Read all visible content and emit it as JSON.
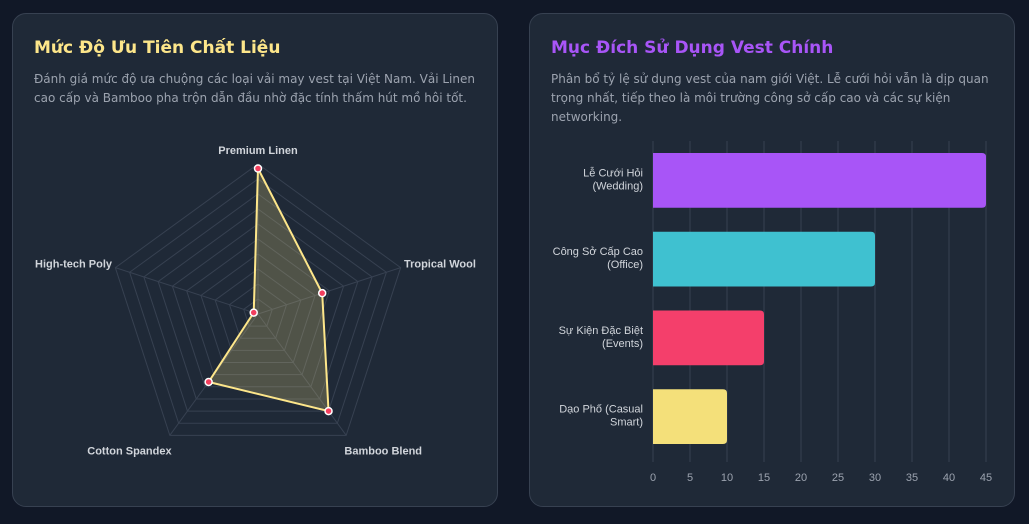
{
  "colors": {
    "background": "#111827",
    "card": "#1f2937",
    "grid": "#374151",
    "title_left": "#fde68a",
    "title_right": "#a855f7"
  },
  "left_card": {
    "title": "Mức Độ Ưu Tiên Chất Liệu",
    "description": "Đánh giá mức độ ưa chuộng các loại vải may vest tại Việt Nam. Vải Linen cao cấp và Bamboo pha trộn dẫn đầu nhờ đặc tính thấm hút mồ hôi tốt."
  },
  "right_card": {
    "title": "Mục Đích Sử Dụng Vest Chính",
    "description": "Phân bổ tỷ lệ sử dụng vest của nam giới Việt. Lễ cưới hỏi vẫn là dịp quan trọng nhất, tiếp theo là môi trường công sở cấp cao và các sự kiện networking."
  },
  "chart_data": [
    {
      "type": "radar",
      "categories": [
        "Premium Linen",
        "Tropical Wool",
        "Bamboo Blend",
        "Cotton Spandex",
        "High-tech Poly"
      ],
      "values": [
        97,
        45,
        80,
        56,
        3
      ],
      "range": [
        0,
        100
      ],
      "grid": true,
      "line_color": "#fde68a",
      "point_color": "#f43f5e"
    },
    {
      "type": "bar",
      "orientation": "horizontal",
      "categories": [
        [
          "Lễ Cưới Hỏi",
          "(Wedding)"
        ],
        [
          "Công Sở Cấp Cao",
          "(Office)"
        ],
        [
          "Sự Kiện Đặc Biệt",
          "(Events)"
        ],
        [
          "Dạo Phố (Casual",
          "Smart)"
        ]
      ],
      "values": [
        45,
        30,
        15,
        10
      ],
      "colors": [
        "#a855f7",
        "#3fc1d0",
        "#f43f6b",
        "#f4e07a"
      ],
      "xlim": [
        0,
        45
      ],
      "xticks": [
        "0",
        "5",
        "10",
        "15",
        "20",
        "25",
        "30",
        "35",
        "40",
        "45"
      ],
      "grid": true
    }
  ]
}
